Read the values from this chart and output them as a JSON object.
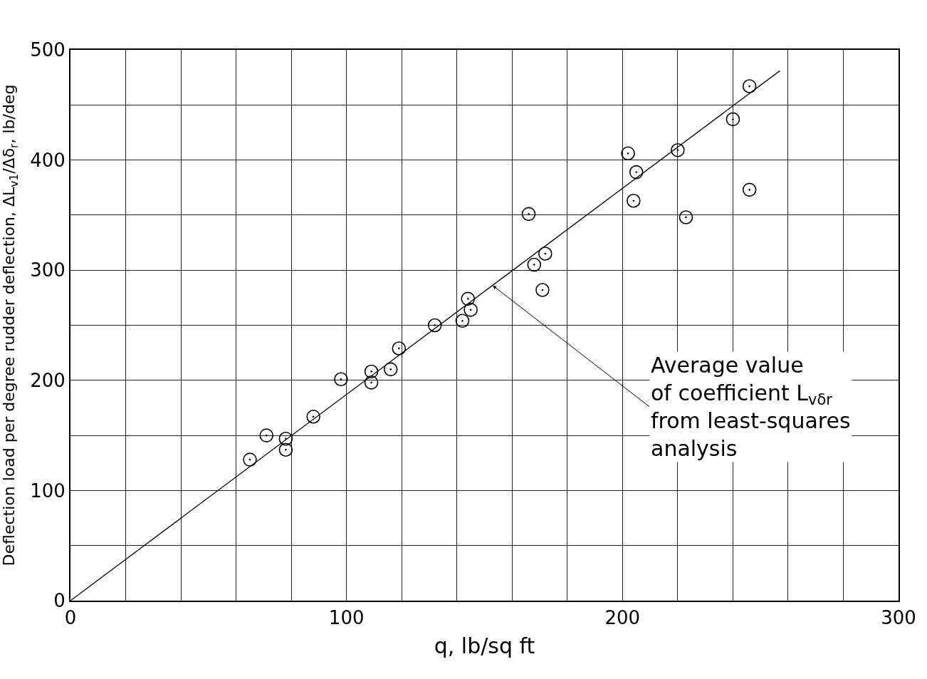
{
  "chart_data": {
    "type": "scatter",
    "xlabel": "q, lb/sq ft",
    "ylabel": "Deflection load per degree rudder deflection, ΔL$_{v1}$/Δδ$_{r}$, lb/deg",
    "xlim": [
      0,
      300
    ],
    "ylim": [
      0,
      500
    ],
    "xticks": [
      0,
      {
        "value": 20,
        "label": null
      },
      {
        "value": 40,
        "label": null
      },
      {
        "value": 60,
        "label": null
      },
      {
        "value": 80,
        "label": null
      },
      100,
      {
        "value": 120,
        "label": null
      },
      {
        "value": 140,
        "label": null
      },
      {
        "value": 160,
        "label": null
      },
      {
        "value": 180,
        "label": null
      },
      200,
      {
        "value": 220,
        "label": null
      },
      {
        "value": 240,
        "label": null
      },
      {
        "value": 260,
        "label": null
      },
      {
        "value": 280,
        "label": null
      },
      300
    ],
    "yticks": [
      0,
      {
        "value": 50,
        "label": null
      },
      100,
      {
        "value": 150,
        "label": null
      },
      200,
      {
        "value": 250,
        "label": null
      },
      300,
      {
        "value": 350,
        "label": null
      },
      400,
      {
        "value": 450,
        "label": null
      },
      500
    ],
    "grid": true,
    "series": [
      {
        "marker": "circle",
        "color": "#000000",
        "x": [
          65,
          71,
          78,
          78,
          88,
          98,
          109,
          109,
          116,
          119,
          132,
          142,
          144,
          145,
          166,
          168,
          172,
          171,
          202,
          205,
          204,
          220,
          223,
          240,
          246,
          246
        ],
        "values": [
          128,
          150,
          147,
          137,
          167,
          201,
          208,
          198,
          210,
          229,
          250,
          254,
          274,
          264,
          351,
          305,
          315,
          282,
          406,
          389,
          363,
          409,
          348,
          437,
          467,
          373
        ]
      },
      {
        "type": "line",
        "color": "#000000",
        "x": [
          0,
          257
        ],
        "values": [
          0,
          481
        ]
      }
    ],
    "annotations": [
      {
        "text": "Average value of coefficient L$_{vδr}$ from least-squares analysis",
        "x": 153,
        "y": 286
      }
    ]
  }
}
